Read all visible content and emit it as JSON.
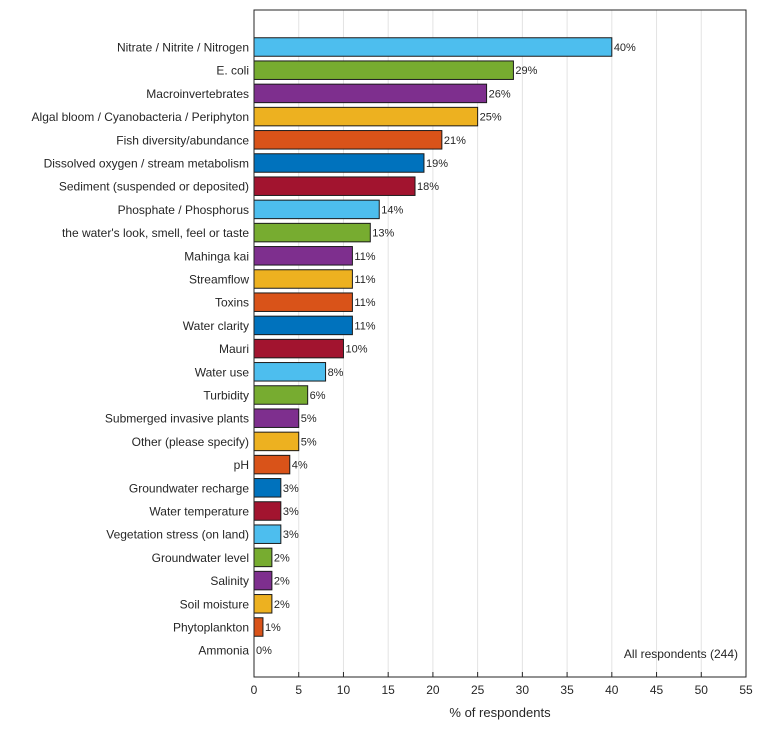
{
  "chart_data": {
    "type": "bar",
    "orientation": "horizontal",
    "categories": [
      "Nitrate / Nitrite / Nitrogen",
      "E. coli",
      "Macroinvertebrates",
      "Algal bloom / Cyanobacteria / Periphyton",
      "Fish diversity/abundance",
      "Dissolved oxygen / stream metabolism",
      "Sediment (suspended or deposited)",
      "Phosphate / Phosphorus",
      "the water's look, smell, feel or taste",
      "Mahinga kai",
      "Streamflow",
      "Toxins",
      "Water clarity",
      "Mauri",
      "Water use",
      "Turbidity",
      "Submerged invasive plants",
      "Other (please specify)",
      "pH",
      "Groundwater recharge",
      "Water temperature",
      "Vegetation stress (on land)",
      "Groundwater level",
      "Salinity",
      "Soil moisture",
      "Phytoplankton",
      "Ammonia"
    ],
    "values": [
      40,
      29,
      26,
      25,
      21,
      19,
      18,
      14,
      13,
      11,
      11,
      11,
      11,
      10,
      8,
      6,
      5,
      5,
      4,
      3,
      3,
      3,
      2,
      2,
      2,
      1,
      0
    ],
    "value_labels": [
      "40%",
      "29%",
      "26%",
      "25%",
      "21%",
      "19%",
      "18%",
      "14%",
      "13%",
      "11%",
      "11%",
      "11%",
      "11%",
      "10%",
      "8%",
      "6%",
      "5%",
      "5%",
      "4%",
      "3%",
      "3%",
      "3%",
      "2%",
      "2%",
      "2%",
      "1%",
      "0%"
    ],
    "color_cycle": [
      "#4dbeee",
      "#77ac30",
      "#7e2f8e",
      "#edb120",
      "#d95319",
      "#0072bd",
      "#a2142f"
    ],
    "xlabel": "% of respondents",
    "xlim": [
      0,
      55
    ],
    "xticks": [
      0,
      5,
      10,
      15,
      20,
      25,
      30,
      35,
      40,
      45,
      50,
      55
    ],
    "grid": "vertical",
    "annotation": "All respondents (244)"
  }
}
